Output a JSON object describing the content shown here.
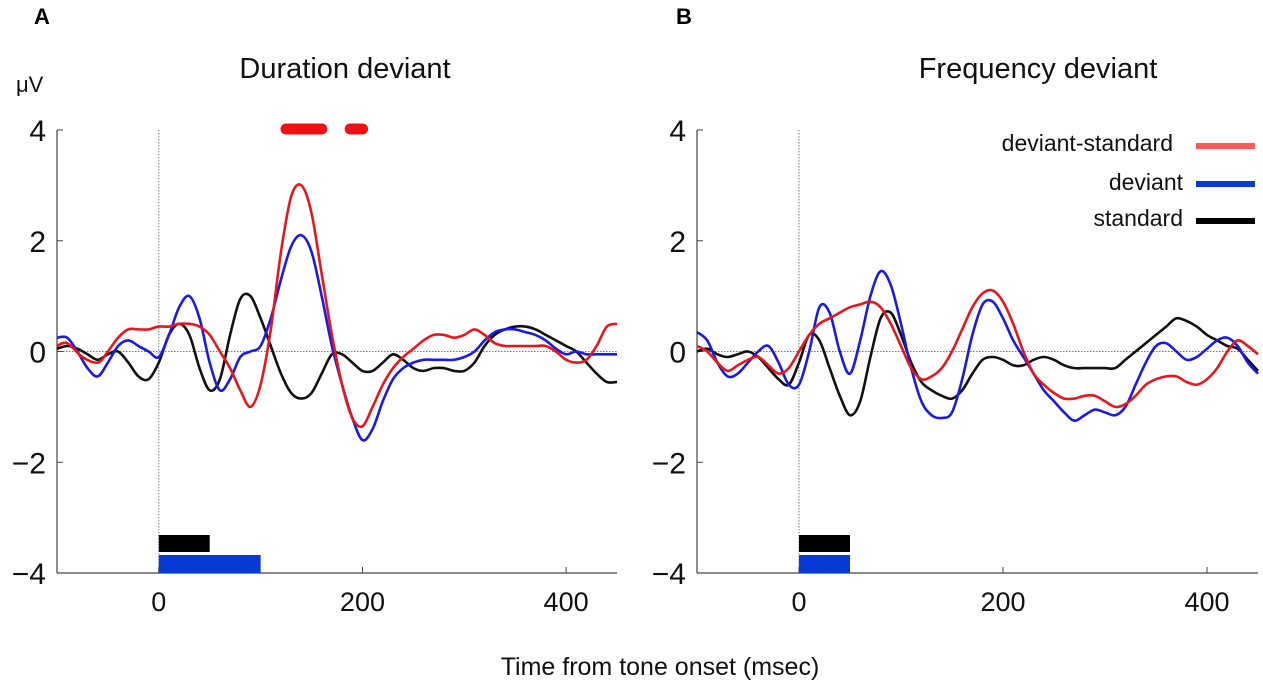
{
  "panels": [
    {
      "letter": "A",
      "title": "Duration deviant"
    },
    {
      "letter": "B",
      "title": "Frequency deviant"
    }
  ],
  "unit_label": "μV",
  "xlabel": "Time from tone onset (msec)",
  "colors": {
    "deviant-standard": "#e8161b",
    "deviant": "#1a1ae6",
    "standard": "#111111"
  },
  "legend": [
    {
      "name": "deviant-standard",
      "color": "#ff5a5a"
    },
    {
      "name": "deviant",
      "color": "#0a3ad6"
    },
    {
      "name": "standard",
      "color": "#000000"
    }
  ],
  "chart_data": [
    {
      "type": "line",
      "title": "Duration deviant",
      "xlabel": "Time from tone onset (msec)",
      "ylabel": "μV",
      "xlim": [
        -100,
        450
      ],
      "ylim": [
        -4,
        4
      ],
      "xticks": [
        0,
        200,
        400
      ],
      "yticks": [
        -4,
        -2,
        0,
        2,
        4
      ],
      "series": [
        {
          "name": "deviant-standard",
          "x": [
            -100,
            -90,
            -75,
            -60,
            -50,
            -40,
            -30,
            -20,
            -10,
            0,
            10,
            20,
            30,
            40,
            50,
            60,
            70,
            80,
            90,
            100,
            110,
            120,
            130,
            140,
            150,
            160,
            170,
            180,
            190,
            200,
            210,
            220,
            230,
            240,
            250,
            260,
            270,
            280,
            290,
            300,
            310,
            320,
            330,
            340,
            350,
            360,
            370,
            380,
            390,
            400,
            410,
            420,
            430,
            440,
            450
          ],
          "y": [
            0.1,
            0.15,
            -0.1,
            -0.2,
            0.0,
            0.25,
            0.4,
            0.4,
            0.4,
            0.45,
            0.45,
            0.5,
            0.5,
            0.45,
            0.3,
            0.0,
            -0.3,
            -0.7,
            -1.0,
            -0.6,
            0.4,
            1.8,
            2.8,
            3.0,
            2.5,
            1.4,
            0.3,
            -0.6,
            -1.2,
            -1.35,
            -1.0,
            -0.6,
            -0.3,
            -0.1,
            0.05,
            0.2,
            0.3,
            0.3,
            0.25,
            0.3,
            0.4,
            0.3,
            0.15,
            0.1,
            0.1,
            0.1,
            0.1,
            0.1,
            0.0,
            -0.15,
            -0.2,
            -0.15,
            0.1,
            0.45,
            0.5
          ]
        },
        {
          "name": "deviant",
          "x": [
            -100,
            -90,
            -80,
            -70,
            -60,
            -50,
            -40,
            -30,
            -20,
            -10,
            0,
            10,
            20,
            30,
            40,
            50,
            60,
            70,
            80,
            90,
            100,
            110,
            120,
            130,
            140,
            150,
            160,
            170,
            180,
            190,
            200,
            210,
            220,
            230,
            240,
            250,
            260,
            270,
            280,
            290,
            300,
            310,
            320,
            330,
            340,
            350,
            360,
            370,
            380,
            390,
            400,
            410,
            420,
            430,
            440,
            450
          ],
          "y": [
            0.25,
            0.25,
            0.0,
            -0.3,
            -0.45,
            -0.2,
            0.1,
            0.2,
            0.1,
            0.0,
            -0.1,
            0.3,
            0.8,
            1.0,
            0.6,
            -0.2,
            -0.7,
            -0.5,
            -0.1,
            0.0,
            0.1,
            0.6,
            1.3,
            1.9,
            2.1,
            1.8,
            1.0,
            0.1,
            -0.6,
            -1.2,
            -1.6,
            -1.4,
            -0.9,
            -0.5,
            -0.3,
            -0.2,
            -0.15,
            -0.15,
            -0.15,
            -0.15,
            -0.1,
            0.0,
            0.2,
            0.35,
            0.4,
            0.4,
            0.35,
            0.3,
            0.2,
            0.05,
            -0.05,
            0.0,
            -0.05,
            -0.05,
            -0.05,
            -0.05
          ]
        },
        {
          "name": "standard",
          "x": [
            -100,
            -90,
            -80,
            -70,
            -60,
            -50,
            -40,
            -30,
            -20,
            -10,
            0,
            10,
            20,
            30,
            40,
            50,
            60,
            70,
            80,
            90,
            100,
            110,
            120,
            130,
            140,
            150,
            160,
            170,
            180,
            190,
            200,
            210,
            220,
            230,
            240,
            250,
            260,
            270,
            280,
            290,
            300,
            310,
            320,
            330,
            340,
            350,
            360,
            370,
            380,
            390,
            400,
            410,
            420,
            430,
            440,
            450
          ],
          "y": [
            0.05,
            0.1,
            0.05,
            -0.05,
            -0.15,
            -0.05,
            0.0,
            -0.2,
            -0.45,
            -0.5,
            -0.2,
            0.3,
            0.5,
            0.3,
            -0.3,
            -0.7,
            -0.5,
            0.3,
            0.95,
            1.0,
            0.6,
            0.1,
            -0.4,
            -0.75,
            -0.85,
            -0.75,
            -0.4,
            -0.05,
            -0.05,
            -0.2,
            -0.35,
            -0.35,
            -0.2,
            -0.05,
            -0.15,
            -0.3,
            -0.35,
            -0.3,
            -0.3,
            -0.35,
            -0.35,
            -0.2,
            0.1,
            0.3,
            0.4,
            0.45,
            0.45,
            0.4,
            0.3,
            0.2,
            0.1,
            0.0,
            -0.2,
            -0.4,
            -0.55,
            -0.55
          ]
        }
      ],
      "significance_bars": [
        {
          "color": "red",
          "start": 120,
          "end": 165
        },
        {
          "color": "red",
          "start": 183,
          "end": 205
        },
        {
          "color": "black",
          "start": 0,
          "end": 50
        },
        {
          "color": "blue",
          "start": 0,
          "end": 100
        }
      ]
    },
    {
      "type": "line",
      "title": "Frequency deviant",
      "xlabel": "Time from tone onset (msec)",
      "ylabel": "",
      "xlim": [
        -100,
        450
      ],
      "ylim": [
        -4,
        4
      ],
      "xticks": [
        0,
        200,
        400
      ],
      "yticks": [
        -4,
        -2,
        0,
        2,
        4
      ],
      "series": [
        {
          "name": "deviant-standard",
          "x": [
            -100,
            -90,
            -80,
            -70,
            -60,
            -50,
            -40,
            -30,
            -20,
            -10,
            0,
            10,
            20,
            30,
            40,
            50,
            60,
            70,
            80,
            90,
            100,
            110,
            120,
            130,
            140,
            150,
            160,
            170,
            180,
            190,
            200,
            210,
            220,
            230,
            240,
            250,
            260,
            270,
            280,
            290,
            300,
            310,
            320,
            330,
            340,
            350,
            360,
            370,
            380,
            390,
            400,
            410,
            420,
            430,
            440,
            450
          ],
          "y": [
            0.1,
            0.0,
            -0.2,
            -0.35,
            -0.25,
            -0.15,
            -0.1,
            -0.25,
            -0.4,
            -0.3,
            0.0,
            0.3,
            0.5,
            0.6,
            0.7,
            0.8,
            0.85,
            0.9,
            0.8,
            0.5,
            0.1,
            -0.3,
            -0.5,
            -0.45,
            -0.3,
            0.0,
            0.4,
            0.8,
            1.05,
            1.1,
            0.9,
            0.5,
            0.0,
            -0.4,
            -0.6,
            -0.75,
            -0.85,
            -0.85,
            -0.8,
            -0.8,
            -0.9,
            -1.0,
            -0.95,
            -0.8,
            -0.6,
            -0.5,
            -0.45,
            -0.45,
            -0.55,
            -0.6,
            -0.5,
            -0.3,
            0.0,
            0.2,
            0.1,
            -0.05
          ]
        },
        {
          "name": "deviant",
          "x": [
            -100,
            -90,
            -80,
            -70,
            -60,
            -50,
            -40,
            -30,
            -20,
            -10,
            0,
            10,
            20,
            30,
            40,
            50,
            60,
            70,
            80,
            90,
            100,
            110,
            120,
            130,
            140,
            150,
            160,
            170,
            180,
            190,
            200,
            210,
            220,
            230,
            240,
            250,
            260,
            270,
            280,
            290,
            300,
            310,
            320,
            330,
            340,
            350,
            360,
            370,
            380,
            390,
            400,
            410,
            420,
            430,
            440,
            450
          ],
          "y": [
            0.35,
            0.2,
            -0.2,
            -0.45,
            -0.4,
            -0.2,
            0.0,
            0.1,
            -0.2,
            -0.6,
            -0.6,
            0.0,
            0.8,
            0.7,
            0.0,
            -0.4,
            0.2,
            1.0,
            1.45,
            1.2,
            0.5,
            -0.3,
            -0.9,
            -1.15,
            -1.2,
            -1.1,
            -0.5,
            0.3,
            0.85,
            0.9,
            0.6,
            0.2,
            -0.1,
            -0.4,
            -0.7,
            -0.9,
            -1.1,
            -1.25,
            -1.15,
            -1.05,
            -1.1,
            -1.15,
            -1.0,
            -0.6,
            -0.2,
            0.1,
            0.15,
            0.0,
            -0.15,
            -0.1,
            0.05,
            0.2,
            0.25,
            0.1,
            -0.2,
            -0.4
          ]
        },
        {
          "name": "standard",
          "x": [
            -100,
            -90,
            -80,
            -70,
            -60,
            -50,
            -40,
            -30,
            -20,
            -10,
            0,
            10,
            20,
            30,
            40,
            50,
            60,
            70,
            80,
            90,
            100,
            110,
            120,
            130,
            140,
            150,
            160,
            170,
            180,
            190,
            200,
            210,
            220,
            230,
            240,
            250,
            260,
            270,
            280,
            290,
            300,
            310,
            320,
            330,
            340,
            350,
            360,
            370,
            380,
            390,
            400,
            410,
            420,
            430,
            440,
            450
          ],
          "y": [
            0.0,
            0.05,
            -0.05,
            -0.1,
            -0.05,
            0.0,
            -0.1,
            -0.3,
            -0.5,
            -0.6,
            -0.2,
            0.3,
            0.2,
            -0.3,
            -0.8,
            -1.15,
            -0.9,
            -0.1,
            0.6,
            0.7,
            0.3,
            -0.2,
            -0.55,
            -0.7,
            -0.8,
            -0.85,
            -0.7,
            -0.4,
            -0.15,
            -0.1,
            -0.15,
            -0.25,
            -0.25,
            -0.15,
            -0.1,
            -0.15,
            -0.25,
            -0.3,
            -0.3,
            -0.3,
            -0.3,
            -0.3,
            -0.15,
            0.0,
            0.15,
            0.3,
            0.45,
            0.6,
            0.55,
            0.45,
            0.3,
            0.2,
            0.1,
            0.05,
            -0.15,
            -0.35
          ]
        }
      ],
      "significance_bars": [
        {
          "color": "black",
          "start": 0,
          "end": 50
        },
        {
          "color": "blue",
          "start": 0,
          "end": 50
        }
      ]
    }
  ]
}
